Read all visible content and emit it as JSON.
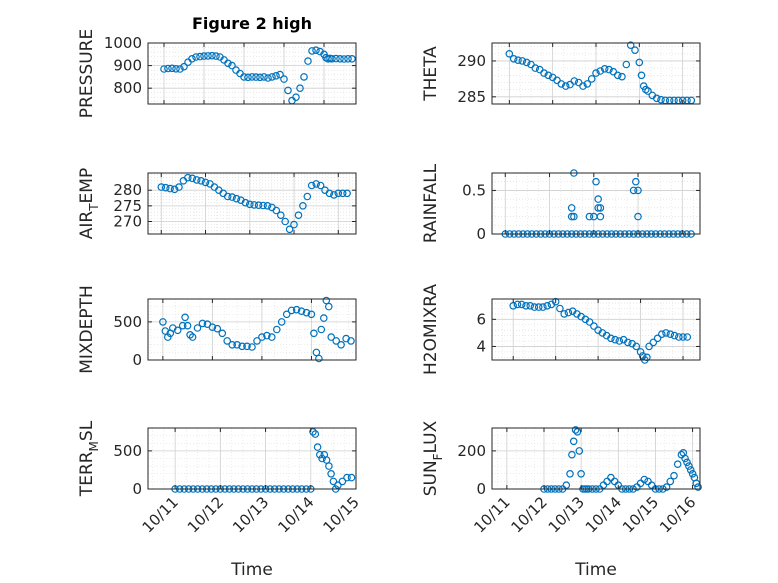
{
  "figure": {
    "title": "Figure 2 high",
    "marker_color": "#0072BD"
  },
  "chart_data": [
    {
      "type": "scatter",
      "name": "pressure-panel",
      "ylabel": "PRESSURE",
      "ylabel_parts": [
        "PRESSURE"
      ],
      "ylim": [
        730,
        1000
      ],
      "yticks": [
        800,
        900,
        1000
      ],
      "ytick_labels": [
        "800",
        "900",
        "1000"
      ],
      "x": [
        0.0,
        0.1,
        0.2,
        0.3,
        0.4,
        0.5,
        0.6,
        0.7,
        0.8,
        0.9,
        1.0,
        1.1,
        1.2,
        1.3,
        1.4,
        1.5,
        1.6,
        1.7,
        1.8,
        1.9,
        2.0,
        2.1,
        2.2,
        2.3,
        2.4,
        2.5,
        2.6,
        2.7,
        2.8,
        2.9,
        3.0,
        3.1,
        3.2,
        3.3,
        3.4,
        3.5,
        3.6,
        3.7,
        3.8,
        3.9,
        4.0,
        4.05,
        4.1,
        4.15,
        4.2,
        4.3,
        4.4,
        4.5,
        4.6,
        4.7
      ],
      "y": [
        885,
        887,
        888,
        886,
        885,
        895,
        915,
        930,
        938,
        940,
        942,
        943,
        944,
        942,
        938,
        925,
        910,
        900,
        880,
        865,
        850,
        848,
        850,
        849,
        848,
        850,
        845,
        850,
        855,
        860,
        840,
        790,
        745,
        760,
        800,
        850,
        920,
        965,
        968,
        962,
        950,
        935,
        930,
        932,
        930,
        931,
        930,
        929,
        930,
        930
      ]
    },
    {
      "type": "scatter",
      "name": "theta-panel",
      "ylabel": "THETA",
      "ylabel_parts": [
        "THETA"
      ],
      "ylim": [
        284,
        292.5
      ],
      "yticks": [
        285,
        290
      ],
      "ytick_labels": [
        "285",
        "290"
      ],
      "x": [
        0.0,
        0.1,
        0.2,
        0.3,
        0.4,
        0.5,
        0.6,
        0.7,
        0.8,
        0.9,
        1.0,
        1.1,
        1.2,
        1.3,
        1.4,
        1.5,
        1.6,
        1.7,
        1.8,
        1.9,
        2.0,
        2.1,
        2.2,
        2.3,
        2.4,
        2.5,
        2.6,
        2.7,
        2.8,
        2.9,
        3.0,
        3.05,
        3.1,
        3.15,
        3.2,
        3.3,
        3.4,
        3.5,
        3.6,
        3.7,
        3.8,
        3.9,
        4.0,
        4.1,
        4.2
      ],
      "y": [
        291,
        290.3,
        290.1,
        290,
        289.8,
        289.5,
        289,
        288.8,
        288.3,
        288,
        287.7,
        287.3,
        286.8,
        286.5,
        286.7,
        287.2,
        287,
        286.5,
        286.8,
        287.5,
        288.3,
        288.6,
        288.9,
        288.8,
        288.5,
        288,
        287.8,
        289.5,
        292.2,
        291.5,
        289.8,
        288,
        286.5,
        286,
        285.8,
        285.2,
        284.8,
        284.6,
        284.5,
        284.5,
        284.5,
        284.5,
        284.5,
        284.5,
        284.5
      ]
    },
    {
      "type": "scatter",
      "name": "air-temp-panel",
      "ylabel": "AIR_TEMP",
      "ylabel_parts": [
        "AIR",
        "T",
        "EMP"
      ],
      "ylim": [
        266,
        285.5
      ],
      "yticks": [
        270,
        275,
        280
      ],
      "ytick_labels": [
        "270",
        "275",
        "280"
      ],
      "x": [
        0.0,
        0.1,
        0.2,
        0.3,
        0.4,
        0.5,
        0.6,
        0.7,
        0.8,
        0.9,
        1.0,
        1.1,
        1.2,
        1.3,
        1.4,
        1.5,
        1.6,
        1.7,
        1.8,
        1.9,
        2.0,
        2.1,
        2.2,
        2.3,
        2.4,
        2.5,
        2.6,
        2.7,
        2.8,
        2.9,
        3.0,
        3.1,
        3.2,
        3.3,
        3.4,
        3.5,
        3.6,
        3.7,
        3.8,
        3.9,
        4.0,
        4.1,
        4.2
      ],
      "y": [
        281,
        280.8,
        280.5,
        280.3,
        281,
        283,
        284,
        283.8,
        283.3,
        283,
        282.5,
        282,
        281,
        280,
        279,
        278,
        277.8,
        277.3,
        276.8,
        276,
        275.5,
        275.3,
        275.2,
        275.1,
        275,
        274.5,
        273.5,
        272,
        270,
        267.5,
        269,
        272,
        275,
        278,
        281.5,
        282,
        281.5,
        280,
        279,
        278.5,
        279,
        279,
        279
      ]
    },
    {
      "type": "scatter",
      "name": "rainfall-panel",
      "ylabel": "RAINFALL",
      "ylabel_parts": [
        "RAINFALL"
      ],
      "ylim": [
        0,
        0.7
      ],
      "yticks": [
        0,
        0.5
      ],
      "ytick_labels": [
        "0",
        "0.5"
      ],
      "x": [
        0.0,
        0.1,
        0.2,
        0.3,
        0.4,
        0.5,
        0.6,
        0.7,
        0.8,
        0.9,
        1.0,
        1.1,
        1.2,
        1.3,
        1.4,
        1.5,
        1.6,
        1.7,
        1.8,
        1.9,
        2.0,
        2.1,
        2.2,
        2.3,
        2.4,
        2.5,
        2.6,
        2.7,
        2.8,
        2.9,
        3.0,
        3.1,
        3.2,
        3.3,
        3.4,
        3.5,
        3.6,
        3.7,
        3.8,
        3.9,
        4.0,
        4.1,
        4.2,
        1.5,
        1.5,
        1.55,
        1.55,
        1.9,
        2.05,
        2.1,
        2.15,
        2.0,
        2.1,
        2.15,
        2.9,
        2.95,
        3.0,
        3.0
      ],
      "y": [
        0,
        0,
        0,
        0,
        0,
        0,
        0,
        0,
        0,
        0,
        0,
        0,
        0,
        0,
        0,
        0,
        0,
        0,
        0,
        0,
        0,
        0,
        0,
        0,
        0,
        0,
        0,
        0,
        0,
        0,
        0,
        0,
        0,
        0,
        0,
        0,
        0,
        0,
        0,
        0,
        0,
        0,
        0,
        0.2,
        0.3,
        0.2,
        0.7,
        0.2,
        0.6,
        0.4,
        0.3,
        0.2,
        0.3,
        0.2,
        0.5,
        0.6,
        0.2,
        0.5
      ]
    },
    {
      "type": "scatter",
      "name": "mixdepth-panel",
      "ylabel": "MIXDEPTH",
      "ylabel_parts": [
        "MIXDEPTH"
      ],
      "ylim": [
        0,
        800
      ],
      "yticks": [
        0,
        500
      ],
      "ytick_labels": [
        "0",
        "500"
      ],
      "x": [
        0.0,
        0.05,
        0.1,
        0.15,
        0.2,
        0.3,
        0.4,
        0.45,
        0.5,
        0.55,
        0.6,
        0.7,
        0.8,
        0.9,
        1.0,
        1.1,
        1.2,
        1.3,
        1.4,
        1.5,
        1.6,
        1.7,
        1.8,
        1.9,
        2.0,
        2.1,
        2.2,
        2.3,
        2.4,
        2.5,
        2.6,
        2.7,
        2.8,
        2.9,
        3.0,
        3.05,
        3.1,
        3.15,
        3.2,
        3.25,
        3.3,
        3.35,
        3.4,
        3.5,
        3.6,
        3.7,
        3.8
      ],
      "y": [
        500,
        380,
        300,
        350,
        420,
        390,
        450,
        560,
        450,
        330,
        300,
        420,
        480,
        470,
        430,
        410,
        350,
        250,
        200,
        200,
        180,
        180,
        170,
        250,
        300,
        320,
        300,
        400,
        500,
        600,
        650,
        660,
        640,
        620,
        600,
        350,
        100,
        20,
        400,
        550,
        780,
        700,
        300,
        250,
        200,
        280,
        250
      ]
    },
    {
      "type": "scatter",
      "name": "h2omixra-panel",
      "ylabel": "H2OMIXRA",
      "ylabel_parts": [
        "H2OMIXRA"
      ],
      "ylim": [
        3,
        7.5
      ],
      "yticks": [
        4,
        6
      ],
      "ytick_labels": [
        "4",
        "6"
      ],
      "x": [
        0.0,
        0.1,
        0.2,
        0.3,
        0.4,
        0.5,
        0.6,
        0.7,
        0.8,
        0.9,
        1.0,
        1.1,
        1.2,
        1.3,
        1.4,
        1.5,
        1.6,
        1.7,
        1.8,
        1.9,
        2.0,
        2.1,
        2.2,
        2.3,
        2.4,
        2.5,
        2.6,
        2.7,
        2.8,
        2.9,
        3.0,
        3.05,
        3.1,
        3.15,
        3.2,
        3.3,
        3.4,
        3.5,
        3.6,
        3.7,
        3.8,
        3.9,
        4.0,
        4.1
      ],
      "y": [
        7,
        7.1,
        7.1,
        7.0,
        7.0,
        6.9,
        6.9,
        6.9,
        7.0,
        7.1,
        7.3,
        6.8,
        6.4,
        6.5,
        6.6,
        6.4,
        6.2,
        6.0,
        5.8,
        5.5,
        5.2,
        5.0,
        4.8,
        4.6,
        4.5,
        4.4,
        4.5,
        4.3,
        4.2,
        4.0,
        3.6,
        3.3,
        3.0,
        3.2,
        4.0,
        4.3,
        4.6,
        4.9,
        5.0,
        4.9,
        4.8,
        4.7,
        4.7,
        4.7
      ]
    },
    {
      "type": "scatter",
      "name": "terr-msl-panel",
      "ylabel": "TERR_MSL",
      "ylabel_parts": [
        "TERR",
        "M",
        "SL"
      ],
      "ylim": [
        0,
        800
      ],
      "yticks": [
        0,
        500
      ],
      "ytick_labels": [
        "0",
        "500"
      ],
      "x": [
        0.0,
        0.1,
        0.2,
        0.3,
        0.4,
        0.5,
        0.6,
        0.7,
        0.8,
        0.9,
        1.0,
        1.1,
        1.2,
        1.3,
        1.4,
        1.5,
        1.6,
        1.7,
        1.8,
        1.9,
        2.0,
        2.1,
        2.2,
        2.3,
        2.4,
        2.5,
        2.6,
        2.7,
        2.8,
        2.9,
        3.0,
        3.05,
        3.1,
        3.15,
        3.2,
        3.25,
        3.3,
        3.35,
        3.4,
        3.45,
        3.5,
        3.55,
        3.6,
        3.7,
        3.8,
        3.9
      ],
      "y": [
        0,
        0,
        0,
        0,
        0,
        0,
        0,
        0,
        0,
        0,
        0,
        0,
        0,
        0,
        0,
        0,
        0,
        0,
        0,
        0,
        0,
        0,
        0,
        0,
        0,
        0,
        0,
        0,
        0,
        0,
        0,
        750,
        720,
        550,
        450,
        400,
        450,
        380,
        300,
        200,
        100,
        0,
        50,
        100,
        150,
        150
      ]
    },
    {
      "type": "scatter",
      "name": "sun-flux-panel",
      "ylabel": "SUN_FLUX",
      "ylabel_parts": [
        "SUN",
        "F",
        "LUX"
      ],
      "ylim": [
        0,
        320
      ],
      "yticks": [
        0,
        200
      ],
      "ytick_labels": [
        "0",
        "200"
      ],
      "x": [
        1.0,
        1.1,
        1.2,
        1.3,
        1.4,
        1.5,
        1.6,
        1.7,
        1.75,
        1.8,
        1.85,
        1.9,
        1.95,
        2.0,
        2.05,
        2.1,
        2.15,
        2.2,
        2.3,
        2.4,
        2.5,
        2.6,
        2.7,
        2.8,
        2.9,
        3.0,
        3.1,
        3.2,
        3.3,
        3.4,
        3.5,
        3.6,
        3.7,
        3.8,
        3.9,
        4.0,
        4.1,
        4.2,
        4.3,
        4.4,
        4.5,
        4.6,
        4.7,
        4.75,
        4.8,
        4.85,
        4.9,
        4.95,
        5.0,
        5.05,
        5.1,
        5.15
      ],
      "y": [
        0,
        0,
        0,
        0,
        0,
        0,
        20,
        80,
        180,
        250,
        310,
        300,
        200,
        80,
        0,
        0,
        0,
        0,
        0,
        0,
        0,
        20,
        40,
        60,
        40,
        20,
        0,
        0,
        0,
        0,
        10,
        30,
        50,
        40,
        20,
        0,
        0,
        0,
        10,
        40,
        70,
        130,
        180,
        190,
        160,
        140,
        120,
        100,
        80,
        60,
        30,
        10
      ]
    }
  ],
  "x_axis": {
    "label": "Time",
    "ticks": [
      0,
      1,
      2,
      3,
      4,
      5
    ],
    "tick_labels": [
      "10/11",
      "10/12",
      "10/13",
      "10/14",
      "10/15",
      "10/16"
    ],
    "xlim": [
      -0.6,
      5.1
    ]
  }
}
